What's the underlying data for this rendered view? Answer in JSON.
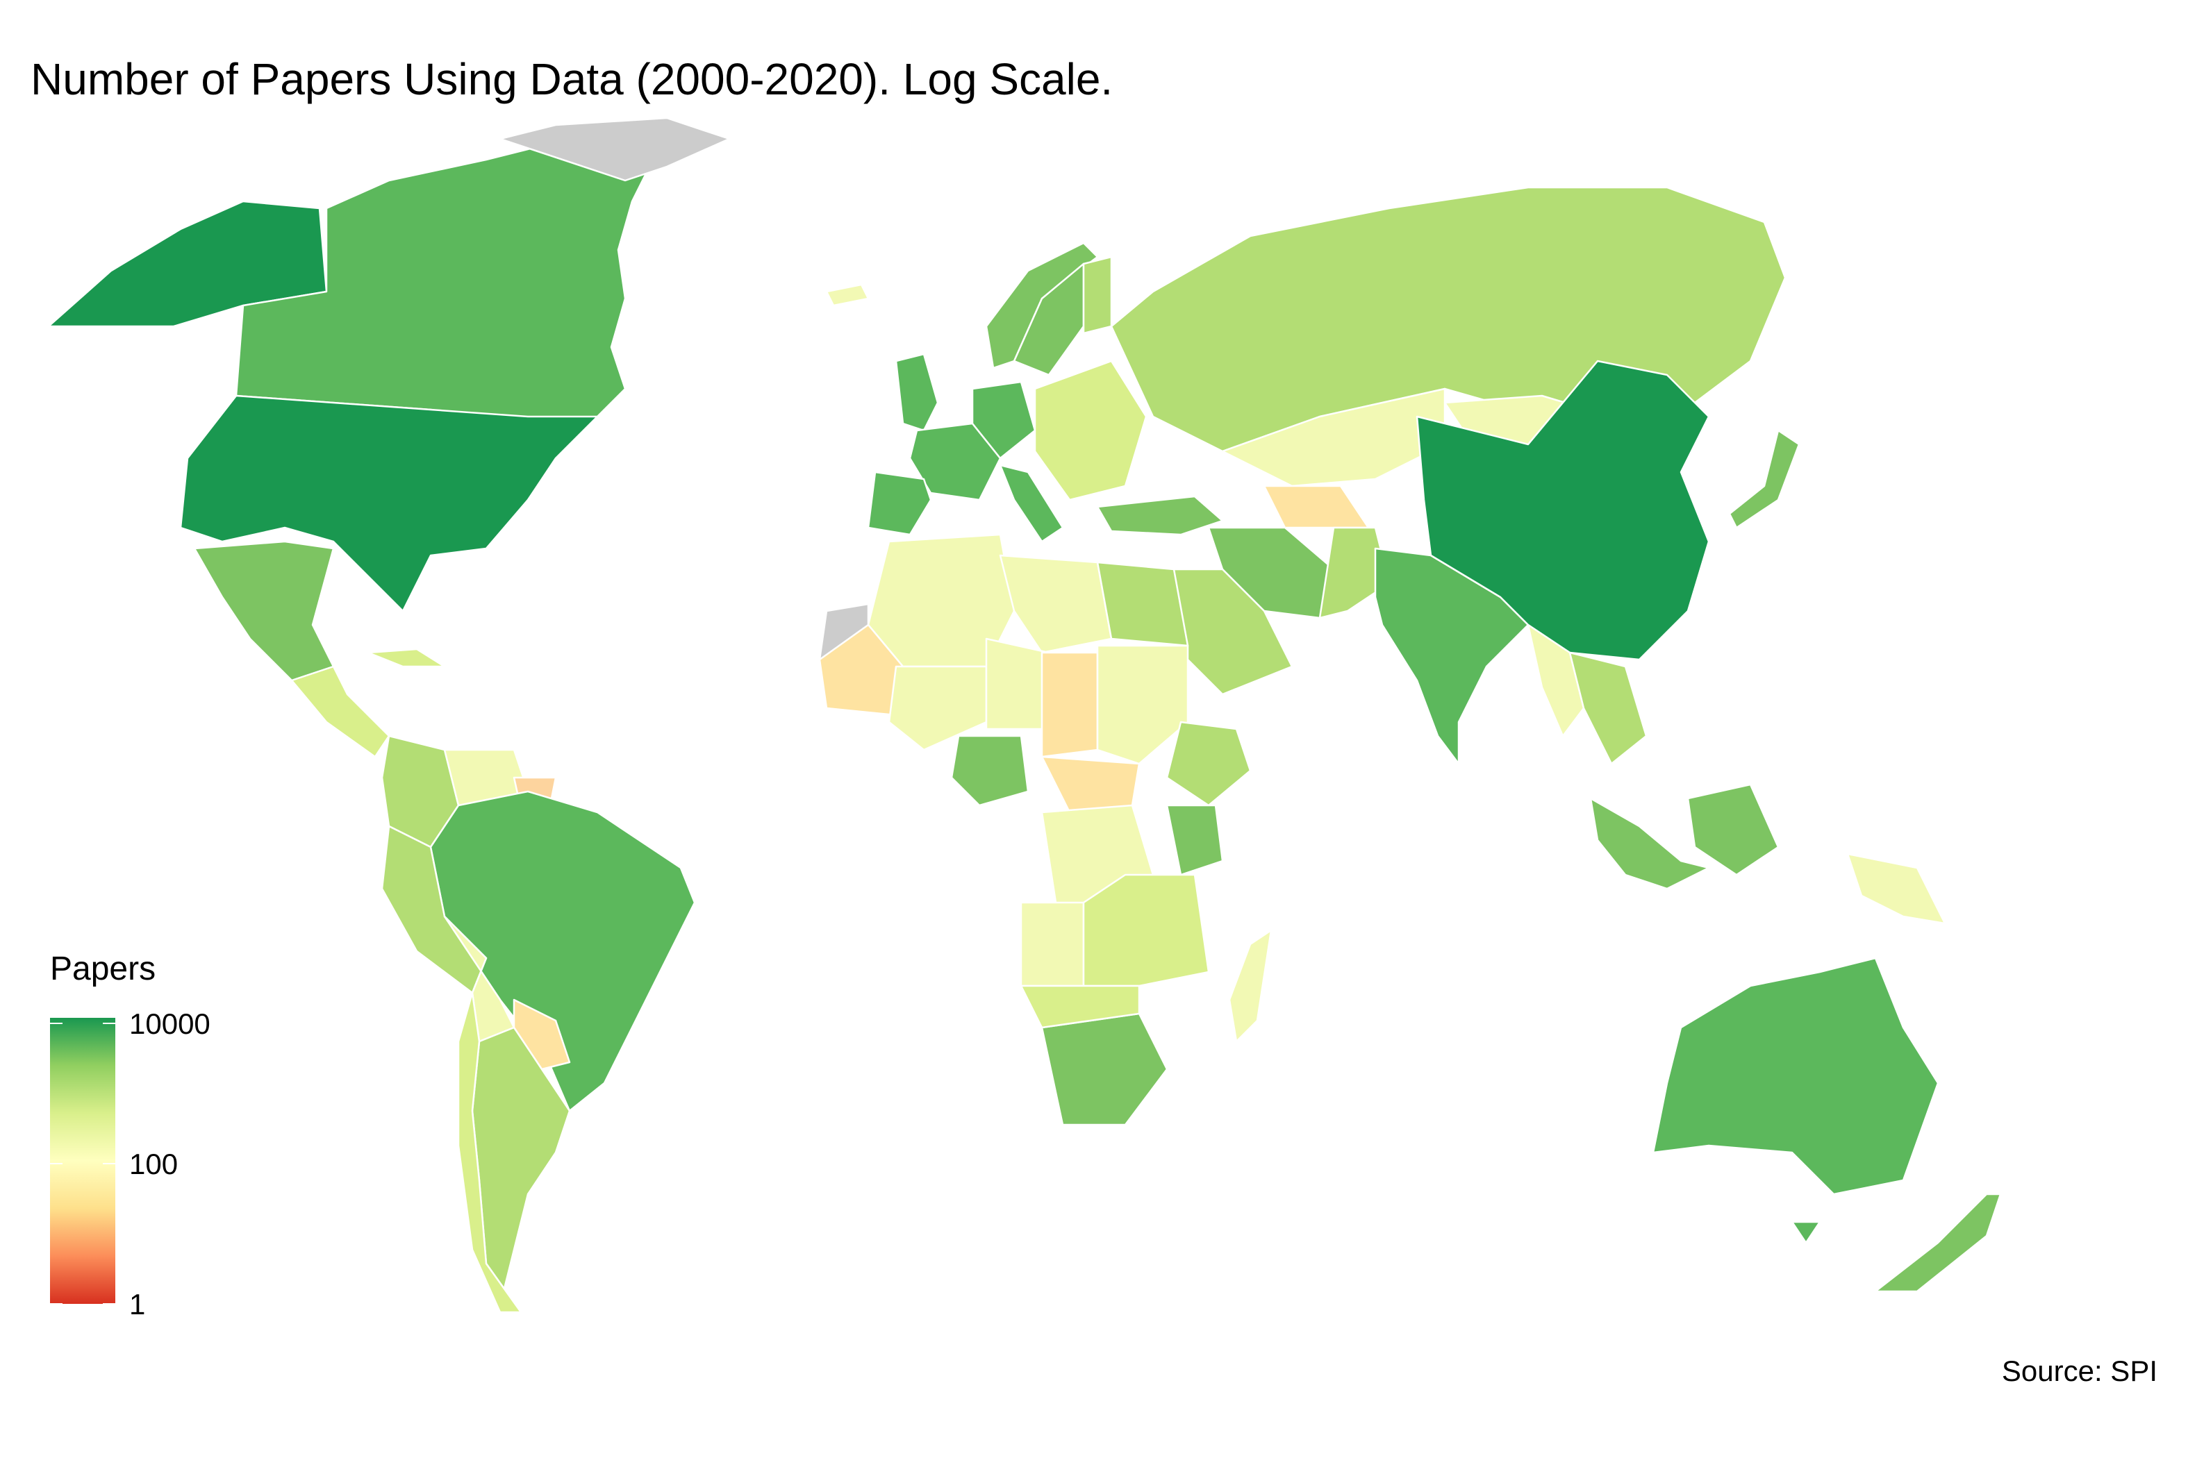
{
  "title": "Number of Papers Using Data (2000-2020). Log Scale.",
  "source": "Source: SPI",
  "legend": {
    "title": "Papers",
    "scale": "log",
    "ticks": [
      "10000",
      "100",
      "1"
    ],
    "colors": [
      "#d7301f",
      "#fc8d59",
      "#fee08b",
      "#ffffbf",
      "#d9ef8b",
      "#91cf60",
      "#1a9850"
    ]
  },
  "colors": {
    "very_high": "#1a9850",
    "high": "#5cb85c",
    "mid_high": "#7dc462",
    "mid": "#b3dd74",
    "low_mid": "#d9ef8b",
    "low": "#f2f9b4",
    "very_low": "#fee3a1",
    "minimal": "#fdd49e",
    "no_data": "#cccccc"
  },
  "map_data": {
    "scale": "log",
    "countries": [
      {
        "name": "United States",
        "level": "very_high"
      },
      {
        "name": "Alaska (USA)",
        "level": "very_high"
      },
      {
        "name": "China",
        "level": "very_high"
      },
      {
        "name": "Canada",
        "level": "high"
      },
      {
        "name": "Brazil",
        "level": "high"
      },
      {
        "name": "Australia",
        "level": "high"
      },
      {
        "name": "India",
        "level": "high"
      },
      {
        "name": "United Kingdom",
        "level": "high"
      },
      {
        "name": "Germany",
        "level": "high"
      },
      {
        "name": "France",
        "level": "high"
      },
      {
        "name": "Spain",
        "level": "high"
      },
      {
        "name": "Italy",
        "level": "high"
      },
      {
        "name": "Mexico",
        "level": "mid_high"
      },
      {
        "name": "Turkey",
        "level": "mid_high"
      },
      {
        "name": "Iran",
        "level": "mid_high"
      },
      {
        "name": "Nigeria",
        "level": "mid_high"
      },
      {
        "name": "South Africa",
        "level": "mid_high"
      },
      {
        "name": "Kenya",
        "level": "mid_high"
      },
      {
        "name": "Japan",
        "level": "mid_high"
      },
      {
        "name": "Sweden",
        "level": "mid_high"
      },
      {
        "name": "Norway",
        "level": "mid_high"
      },
      {
        "name": "Indonesia",
        "level": "mid_high"
      },
      {
        "name": "New Zealand",
        "level": "mid_high"
      },
      {
        "name": "Russia",
        "level": "mid"
      },
      {
        "name": "Argentina",
        "level": "mid"
      },
      {
        "name": "Egypt",
        "level": "mid"
      },
      {
        "name": "Ethiopia",
        "level": "mid"
      },
      {
        "name": "Saudi Arabia",
        "level": "mid"
      },
      {
        "name": "Colombia",
        "level": "mid"
      },
      {
        "name": "Peru",
        "level": "mid"
      },
      {
        "name": "Pakistan",
        "level": "mid"
      },
      {
        "name": "Thailand",
        "level": "mid"
      },
      {
        "name": "Finland",
        "level": "mid"
      },
      {
        "name": "Greenland",
        "level": "no_data"
      },
      {
        "name": "Kazakhstan",
        "level": "low"
      },
      {
        "name": "Mongolia",
        "level": "low"
      },
      {
        "name": "Algeria",
        "level": "low"
      },
      {
        "name": "Libya",
        "level": "low"
      },
      {
        "name": "Mali",
        "level": "low"
      },
      {
        "name": "Niger",
        "level": "low"
      },
      {
        "name": "Angola",
        "level": "low"
      },
      {
        "name": "DR Congo",
        "level": "low"
      },
      {
        "name": "Sudan",
        "level": "low"
      },
      {
        "name": "Venezuela",
        "level": "low"
      },
      {
        "name": "Bolivia",
        "level": "low"
      },
      {
        "name": "Madagascar",
        "level": "low"
      },
      {
        "name": "Myanmar",
        "level": "low"
      },
      {
        "name": "Papua New Guinea",
        "level": "low"
      },
      {
        "name": "Iceland",
        "level": "low"
      },
      {
        "name": "Mauritania",
        "level": "very_low"
      },
      {
        "name": "Chad",
        "level": "very_low"
      },
      {
        "name": "Central African Republic",
        "level": "very_low"
      },
      {
        "name": "Turkmenistan",
        "level": "very_low"
      },
      {
        "name": "Paraguay",
        "level": "very_low"
      },
      {
        "name": "Suriname",
        "level": "minimal"
      },
      {
        "name": "Western Sahara",
        "level": "no_data"
      }
    ]
  }
}
